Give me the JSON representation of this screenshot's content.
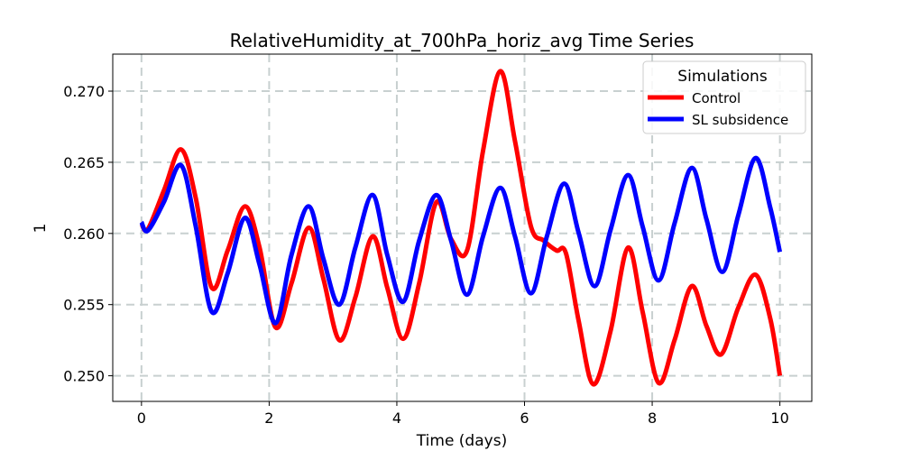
{
  "chart_data": {
    "type": "line",
    "title": "RelativeHumidity_at_700hPa_horiz_avg Time Series",
    "xlabel": "Time (days)",
    "ylabel": "1",
    "xlim": [
      -0.45,
      10.5
    ],
    "ylim": [
      0.2482,
      0.2726
    ],
    "xticks": [
      0,
      2,
      4,
      6,
      8,
      10
    ],
    "xtick_labels": [
      "0",
      "2",
      "4",
      "6",
      "8",
      "10"
    ],
    "yticks": [
      0.25,
      0.255,
      0.26,
      0.265,
      0.27
    ],
    "ytick_labels": [
      "0.250",
      "0.255",
      "0.260",
      "0.265",
      "0.270"
    ],
    "grid": true,
    "legend": {
      "title": "Simulations",
      "placement": "top-right"
    },
    "series": [
      {
        "name": "Control",
        "color": "#ff0000",
        "x": [
          0,
          0.1,
          0.35,
          0.62,
          0.85,
          1.1,
          1.35,
          1.62,
          1.85,
          2.1,
          2.35,
          2.62,
          2.85,
          3.1,
          3.35,
          3.62,
          3.85,
          4.1,
          4.35,
          4.62,
          4.85,
          5.1,
          5.35,
          5.62,
          5.85,
          6.1,
          6.3,
          6.5,
          6.65,
          6.85,
          7.08,
          7.35,
          7.62,
          7.85,
          8.1,
          8.35,
          8.62,
          8.85,
          9.08,
          9.35,
          9.62,
          9.85,
          10.0
        ],
        "y": [
          0.2607,
          0.2603,
          0.263,
          0.2659,
          0.2625,
          0.2562,
          0.2588,
          0.2619,
          0.259,
          0.2534,
          0.2565,
          0.2604,
          0.2568,
          0.2525,
          0.2555,
          0.2598,
          0.2562,
          0.2526,
          0.2565,
          0.2622,
          0.2596,
          0.2588,
          0.2658,
          0.2714,
          0.2665,
          0.2605,
          0.2595,
          0.2588,
          0.2586,
          0.2538,
          0.2494,
          0.2532,
          0.259,
          0.2545,
          0.2495,
          0.2525,
          0.2563,
          0.2535,
          0.2515,
          0.2548,
          0.2571,
          0.254,
          0.25
        ]
      },
      {
        "name": "SL subsidence",
        "color": "#0000ff",
        "x": [
          0,
          0.1,
          0.35,
          0.62,
          0.85,
          1.1,
          1.35,
          1.62,
          1.85,
          2.1,
          2.35,
          2.62,
          2.85,
          3.1,
          3.35,
          3.62,
          3.85,
          4.1,
          4.35,
          4.62,
          4.85,
          5.1,
          5.35,
          5.62,
          5.85,
          6.1,
          6.35,
          6.62,
          6.85,
          7.1,
          7.35,
          7.62,
          7.85,
          8.1,
          8.35,
          8.62,
          8.85,
          9.1,
          9.35,
          9.62,
          9.85,
          10.0
        ],
        "y": [
          0.2608,
          0.2602,
          0.2622,
          0.2648,
          0.2605,
          0.2545,
          0.2572,
          0.2611,
          0.2578,
          0.2537,
          0.2585,
          0.2619,
          0.2582,
          0.255,
          0.259,
          0.2627,
          0.2585,
          0.2552,
          0.2595,
          0.2627,
          0.2595,
          0.2557,
          0.2598,
          0.2632,
          0.2598,
          0.2558,
          0.2598,
          0.2635,
          0.26,
          0.2563,
          0.2603,
          0.2641,
          0.2605,
          0.2567,
          0.2607,
          0.2646,
          0.261,
          0.2573,
          0.2613,
          0.2653,
          0.2618,
          0.2587
        ]
      }
    ]
  }
}
